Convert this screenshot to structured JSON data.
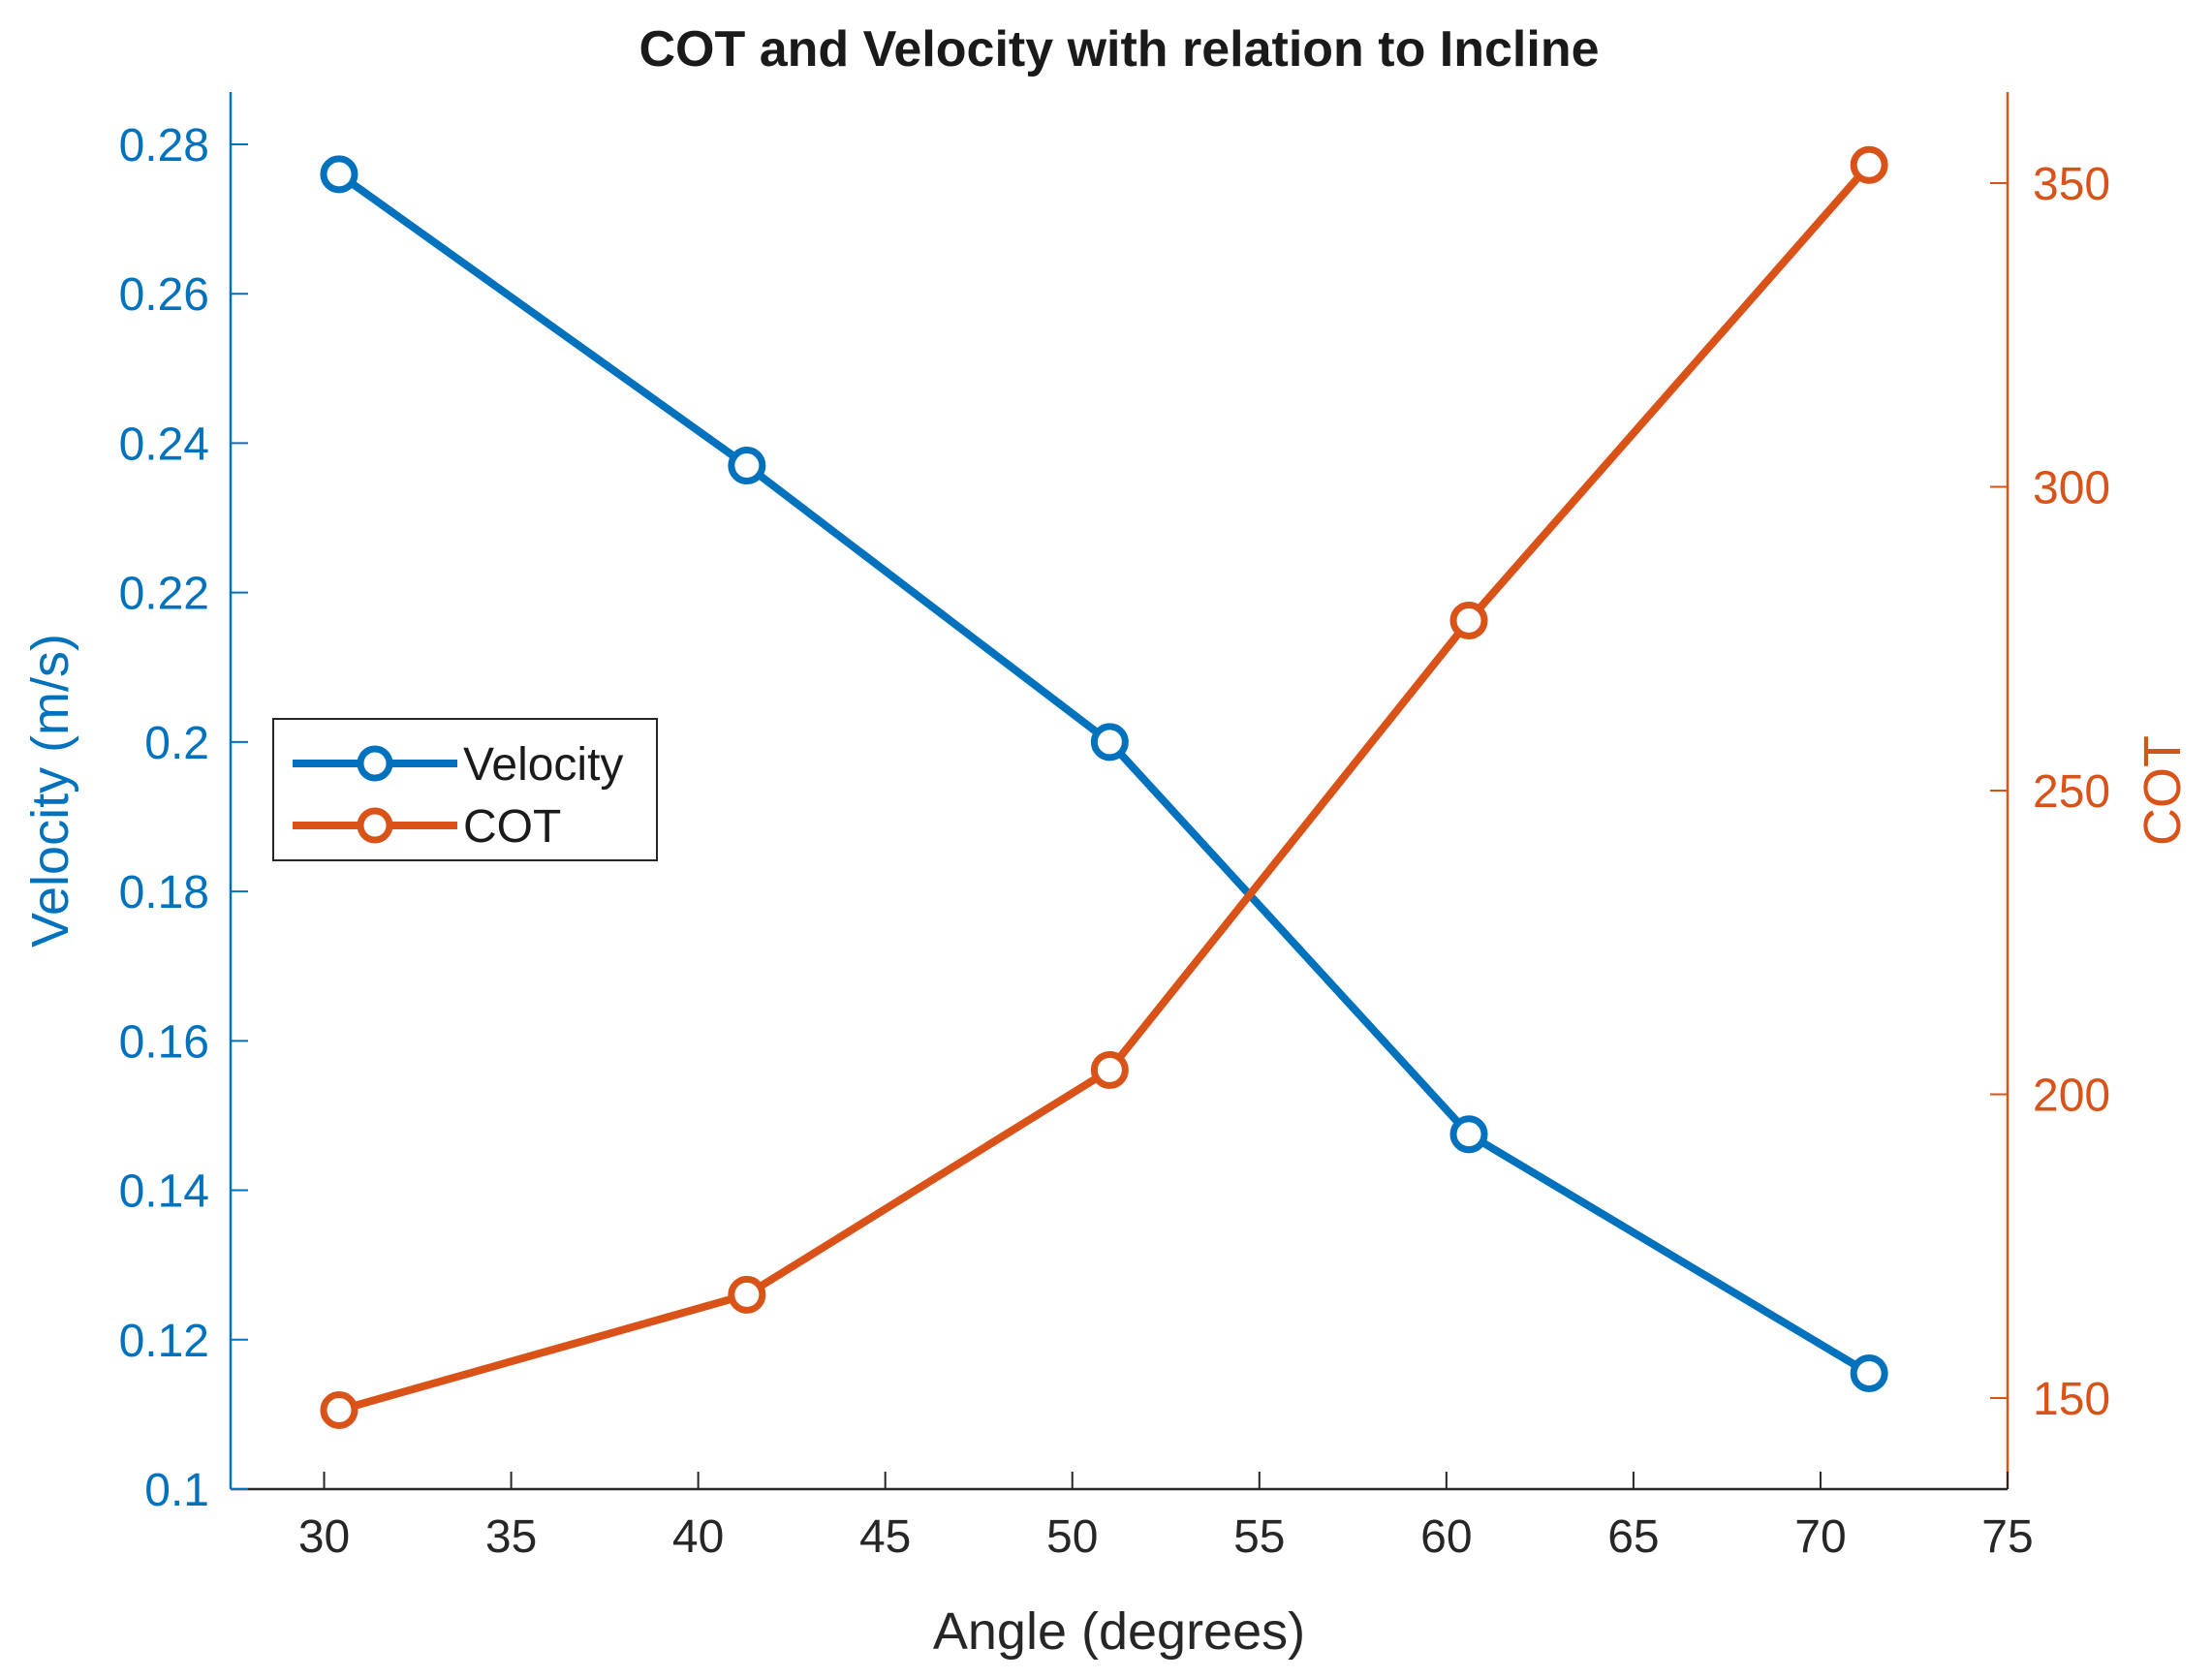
{
  "chart_data": {
    "type": "line",
    "title": "COT and Velocity with relation to Incline",
    "xlabel": "Angle (degrees)",
    "ylabel_left": "Velocity (m/s)",
    "ylabel_right": "COT",
    "xlim": [
      27.5,
      75
    ],
    "xticks": [
      30,
      35,
      40,
      45,
      50,
      55,
      60,
      65,
      70,
      75
    ],
    "ylim_left": [
      0.1,
      0.287
    ],
    "yticks_left": [
      "0.1",
      "0.12",
      "0.14",
      "0.16",
      "0.18",
      "0.2",
      "0.22",
      "0.24",
      "0.26",
      "0.28"
    ],
    "ylim_right": [
      135,
      365
    ],
    "yticks_right": [
      150,
      200,
      250,
      300,
      350
    ],
    "grid": false,
    "legend_position": "middle-left",
    "series": [
      {
        "name": "Velocity",
        "axis": "left",
        "color": "#0072BD",
        "marker": "circle",
        "x": [
          30.4,
          41.3,
          51.0,
          60.6,
          71.3
        ],
        "y": [
          0.276,
          0.237,
          0.2,
          0.1475,
          0.1155
        ]
      },
      {
        "name": "COT",
        "axis": "right",
        "color": "#D95319",
        "marker": "circle",
        "x": [
          30.4,
          41.3,
          51.0,
          60.6,
          71.3
        ],
        "y": [
          148,
          167,
          204,
          278,
          353
        ]
      }
    ],
    "colors": {
      "left_axis": "#0072BD",
      "right_axis": "#D95319",
      "bottom_axis": "#262626"
    }
  }
}
